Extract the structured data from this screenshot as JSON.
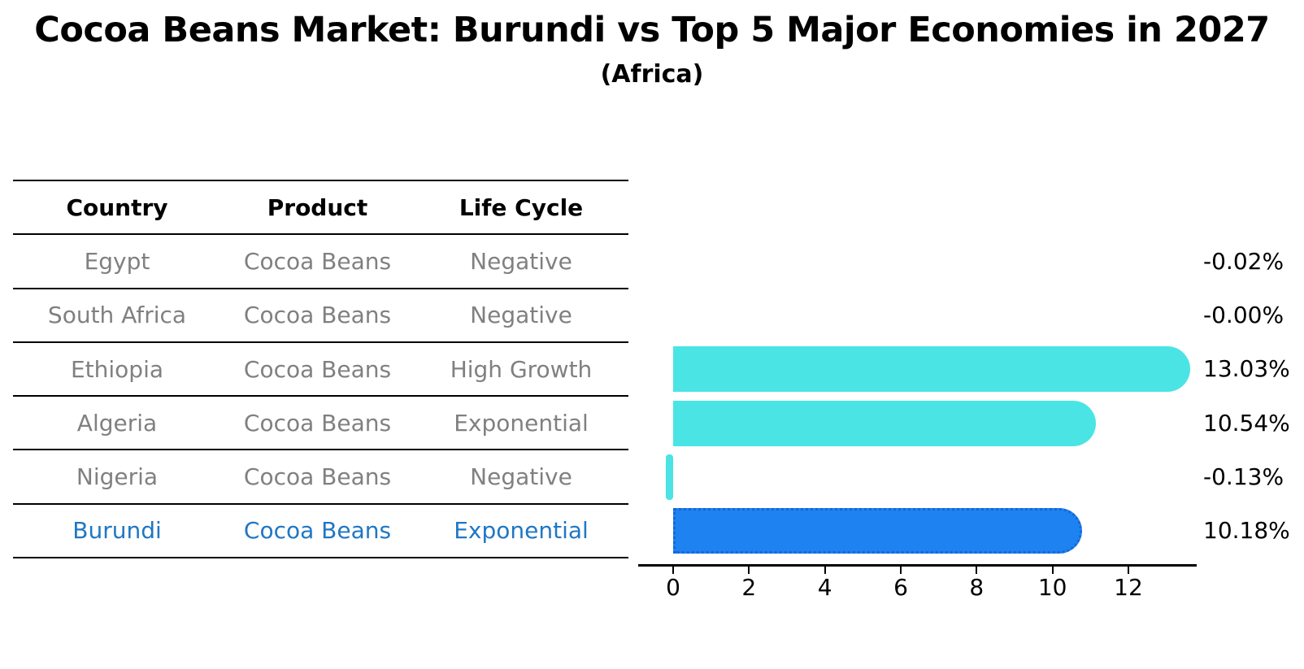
{
  "title": "Cocoa Beans Market: Burundi vs Top 5 Major Economies in 2027",
  "subtitle": "(Africa)",
  "table": {
    "headers": [
      "Country",
      "Product",
      "Life Cycle"
    ],
    "rows": [
      {
        "country": "Egypt",
        "product": "Cocoa Beans",
        "life_cycle": "Negative"
      },
      {
        "country": "South Africa",
        "product": "Cocoa Beans",
        "life_cycle": "Negative"
      },
      {
        "country": "Ethiopia",
        "product": "Cocoa Beans",
        "life_cycle": "High Growth"
      },
      {
        "country": "Algeria",
        "product": "Cocoa Beans",
        "life_cycle": "Exponential"
      },
      {
        "country": "Nigeria",
        "product": "Cocoa Beans",
        "life_cycle": "Negative"
      },
      {
        "country": "Burundi",
        "product": "Cocoa Beans",
        "life_cycle": "Exponential"
      }
    ]
  },
  "chart_data": {
    "type": "bar",
    "orientation": "horizontal",
    "title": "Cocoa Beans Market: Burundi vs Top 5 Major Economies in 2027",
    "subtitle": "(Africa)",
    "categories": [
      "Egypt",
      "South Africa",
      "Ethiopia",
      "Algeria",
      "Nigeria",
      "Burundi"
    ],
    "values": [
      -0.02,
      -0.0,
      13.03,
      10.54,
      -0.13,
      10.18
    ],
    "value_labels": [
      "-0.02%",
      "-0.00%",
      "13.03%",
      "10.54%",
      "-0.13%",
      "10.18%"
    ],
    "x_ticks": [
      0,
      2,
      4,
      6,
      8,
      10,
      12
    ],
    "xlim": [
      -0.9,
      13.8
    ],
    "grid": false,
    "legend": "none",
    "highlight_index": 5,
    "colors": {
      "bar": "#4ae4e4",
      "highlight_bar": "#1e82f0",
      "highlight_border": "#1766d8",
      "row_text": "#808080",
      "highlight_text": "#1f77c4",
      "axis": "#000000"
    }
  }
}
